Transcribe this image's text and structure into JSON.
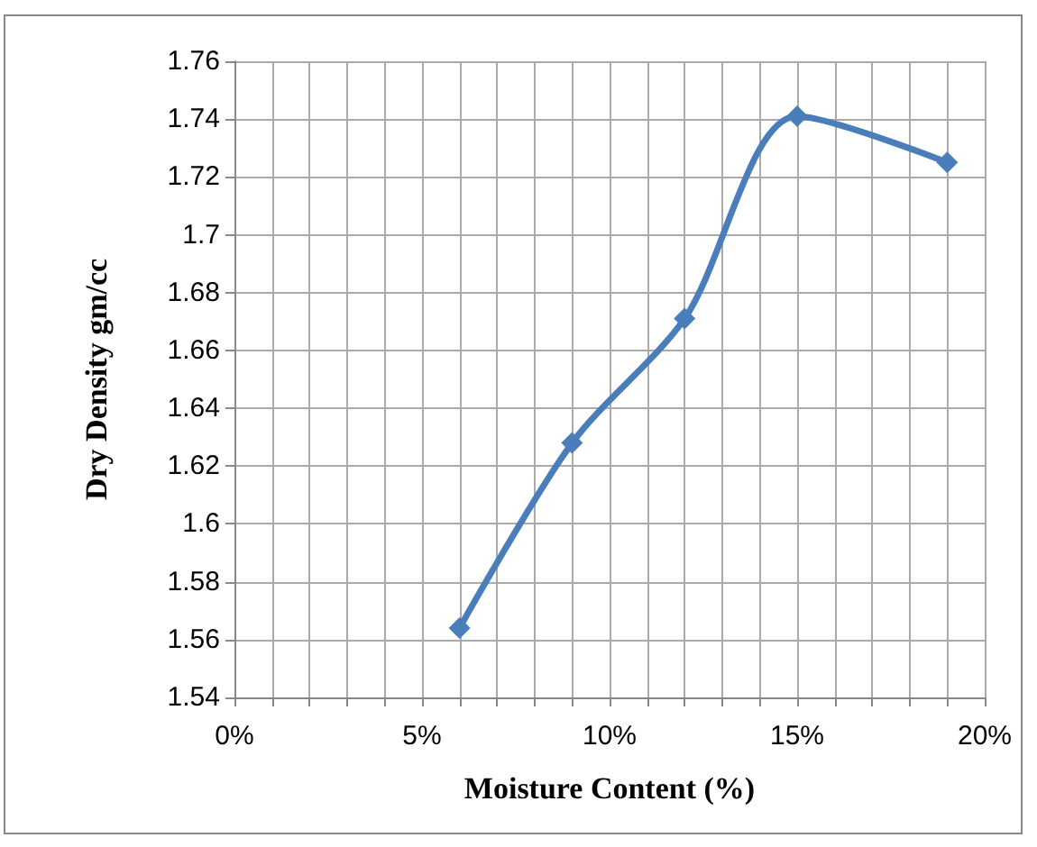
{
  "chart_data": {
    "type": "line",
    "xlabel": "Moisture Content (%)",
    "ylabel": "Dry Density gm/cc",
    "x": [
      6,
      9,
      12,
      15,
      19
    ],
    "series": [
      {
        "color": "#4a7ebb",
        "values": [
          1.564,
          1.628,
          1.671,
          1.741,
          1.725
        ]
      }
    ],
    "xlim": [
      0,
      20
    ],
    "xticks": [
      {
        "value": 0,
        "label": "0%"
      },
      {
        "value": 1,
        "label": null
      },
      {
        "value": 2,
        "label": null
      },
      {
        "value": 3,
        "label": null
      },
      {
        "value": 4,
        "label": null
      },
      {
        "value": 5,
        "label": "5%"
      },
      {
        "value": 6,
        "label": null
      },
      {
        "value": 7,
        "label": null
      },
      {
        "value": 8,
        "label": null
      },
      {
        "value": 9,
        "label": null
      },
      {
        "value": 10,
        "label": "10%"
      },
      {
        "value": 11,
        "label": null
      },
      {
        "value": 12,
        "label": null
      },
      {
        "value": 13,
        "label": null
      },
      {
        "value": 14,
        "label": null
      },
      {
        "value": 15,
        "label": "15%"
      },
      {
        "value": 16,
        "label": null
      },
      {
        "value": 17,
        "label": null
      },
      {
        "value": 18,
        "label": null
      },
      {
        "value": 19,
        "label": null
      },
      {
        "value": 20,
        "label": "20%"
      }
    ],
    "ylim": [
      1.54,
      1.76
    ],
    "yticks": [
      1.54,
      1.56,
      1.58,
      1.6,
      1.62,
      1.64,
      1.66,
      1.68,
      1.7,
      1.72,
      1.74,
      1.76
    ],
    "grid": true,
    "marker": "diamond",
    "line_style": "solid"
  }
}
